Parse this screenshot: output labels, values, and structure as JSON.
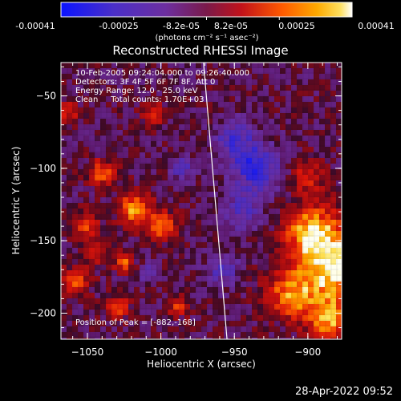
{
  "colorbar": {
    "ticks": [
      "-0.00041",
      "-0.00025",
      "-8.2e-05",
      "8.2e-05",
      "0.00025",
      "0.00041"
    ],
    "unit_label": "(photons cm⁻² s⁻¹ asec⁻²)"
  },
  "info": {
    "time": "10-Feb-2005 09:24:04.000 to 09:26:40.000",
    "detectors": "Detectors: 3F 4F 5F 6F 7F 8F, Att 0",
    "energy": "Energy Range: 12.0 - 25.0 keV",
    "clean": "Clean     Total counts: 1.70E+03",
    "peak": "Position of Peak = [-882,-168]"
  },
  "timestamp": "28-Apr-2022 09:52",
  "chart_data": {
    "type": "heatmap",
    "title": "Reconstructed RHESSI Image",
    "xlabel": "Heliocentric X (arcsec)",
    "ylabel": "Heliocentric Y (arcsec)",
    "xlim": [
      -1068,
      -877
    ],
    "ylim": [
      -218,
      -27
    ],
    "xticks": [
      -1050,
      -1000,
      -950,
      -900
    ],
    "yticks": [
      -50,
      -100,
      -150,
      -200
    ],
    "xtick_labels": [
      "−1050",
      "−1000",
      "−950",
      "−900"
    ],
    "ytick_labels": [
      "−50",
      "−100",
      "−150",
      "−200"
    ],
    "peak": [
      -882,
      -168
    ],
    "limb_line": [
      [
        -971,
        -27
      ],
      [
        -955,
        -218
      ]
    ],
    "value_range": [
      -0.00041,
      0.00041
    ],
    "blobs": [
      {
        "x": -882,
        "y": -168,
        "r": 26,
        "v": 0.00041
      },
      {
        "x": -898,
        "y": -143,
        "r": 18,
        "v": 0.0003
      },
      {
        "x": -912,
        "y": -188,
        "r": 16,
        "v": 0.00028
      },
      {
        "x": -886,
        "y": -205,
        "r": 14,
        "v": 0.0003
      },
      {
        "x": -900,
        "y": -105,
        "r": 12,
        "v": 0.00018
      },
      {
        "x": -1040,
        "y": -103,
        "r": 9,
        "v": 0.00026
      },
      {
        "x": -1018,
        "y": -128,
        "r": 11,
        "v": 0.00033
      },
      {
        "x": -1050,
        "y": -140,
        "r": 9,
        "v": 0.00022
      },
      {
        "x": -1000,
        "y": -140,
        "r": 10,
        "v": 0.0003
      },
      {
        "x": -1058,
        "y": -178,
        "r": 9,
        "v": 0.00027
      },
      {
        "x": -1030,
        "y": -196,
        "r": 8,
        "v": 0.00024
      },
      {
        "x": -988,
        "y": -195,
        "r": 7,
        "v": 0.00022
      },
      {
        "x": -1005,
        "y": -62,
        "r": 8,
        "v": 0.0002
      },
      {
        "x": -1063,
        "y": -62,
        "r": 8,
        "v": 0.00018
      },
      {
        "x": -1045,
        "y": -160,
        "r": 7,
        "v": 0.0002
      },
      {
        "x": -1025,
        "y": -165,
        "r": 7,
        "v": 0.00024
      },
      {
        "x": -935,
        "y": -100,
        "r": 16,
        "v": -0.0003
      },
      {
        "x": -950,
        "y": -80,
        "r": 13,
        "v": -0.00022
      },
      {
        "x": -945,
        "y": -130,
        "r": 12,
        "v": -0.0002
      },
      {
        "x": -985,
        "y": -100,
        "r": 8,
        "v": -0.00018
      },
      {
        "x": -958,
        "y": -170,
        "r": 11,
        "v": -0.00018
      },
      {
        "x": -1010,
        "y": -172,
        "r": 6,
        "v": -0.00015
      }
    ]
  }
}
